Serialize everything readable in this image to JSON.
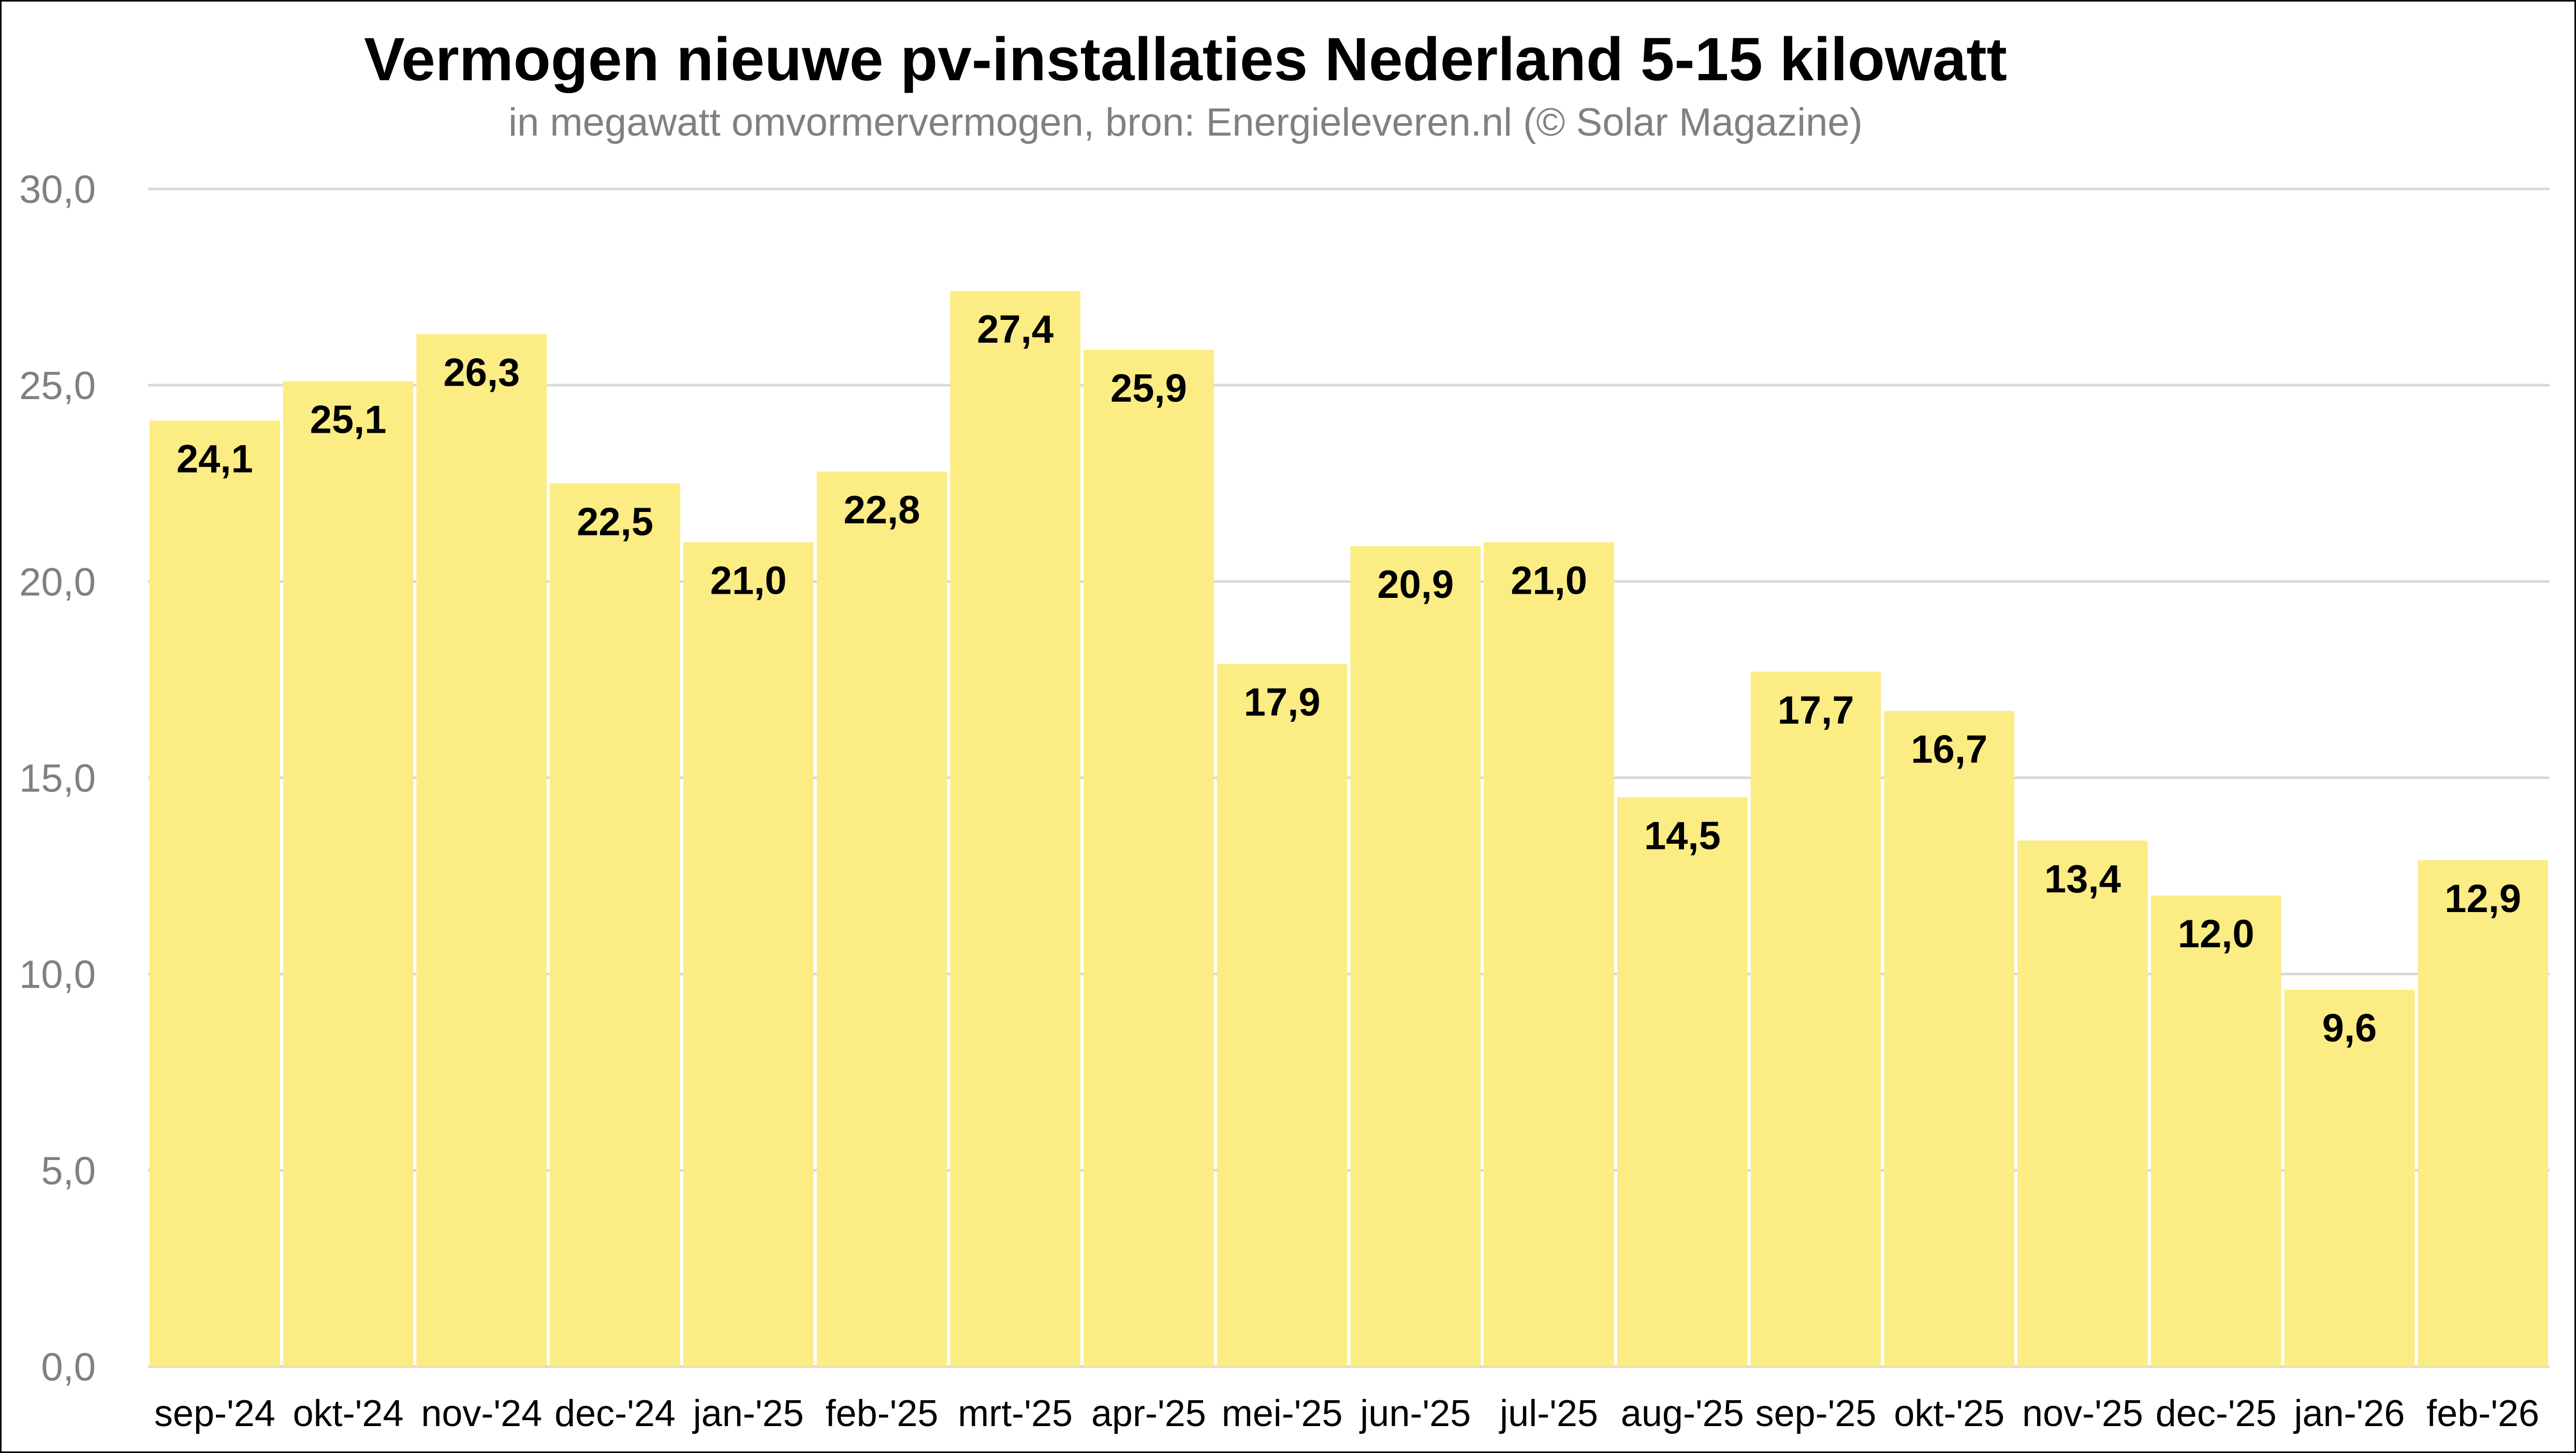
{
  "colors": {
    "bar": "#FCEC84",
    "grid": "#D9D9D9",
    "axis_text": "#808080",
    "label_text": "#000000"
  },
  "chart_data": {
    "type": "bar",
    "title": "Vermogen nieuwe pv-installaties Nederland 5-15 kilowatt",
    "subtitle": "in megawatt omvormervermogen, bron: Energieleveren.nl (© Solar Magazine)",
    "xlabel": "",
    "ylabel": "",
    "ylim": [
      0,
      30
    ],
    "yticks": [
      0,
      5,
      10,
      15,
      20,
      25,
      30
    ],
    "ytick_labels": [
      "0,0",
      "5,0",
      "10,0",
      "15,0",
      "20,0",
      "25,0",
      "30,0"
    ],
    "grid": true,
    "categories": [
      "sep-'24",
      "okt-'24",
      "nov-'24",
      "dec-'24",
      "jan-'25",
      "feb-'25",
      "mrt-'25",
      "apr-'25",
      "mei-'25",
      "jun-'25",
      "jul-'25",
      "aug-'25",
      "sep-'25",
      "okt-'25",
      "nov-'25",
      "dec-'25",
      "jan-'26",
      "feb-'26"
    ],
    "values": [
      24.1,
      25.1,
      26.3,
      22.5,
      21.0,
      22.8,
      27.4,
      25.9,
      17.9,
      20.9,
      21.0,
      14.5,
      17.7,
      16.7,
      13.4,
      12.0,
      9.6,
      12.9
    ],
    "data_labels": [
      "24,1",
      "25,1",
      "26,3",
      "22,5",
      "21,0",
      "22,8",
      "27,4",
      "25,9",
      "17,9",
      "20,9",
      "21,0",
      "14,5",
      "17,7",
      "16,7",
      "13,4",
      "12,0",
      "9,6",
      "12,9"
    ]
  }
}
